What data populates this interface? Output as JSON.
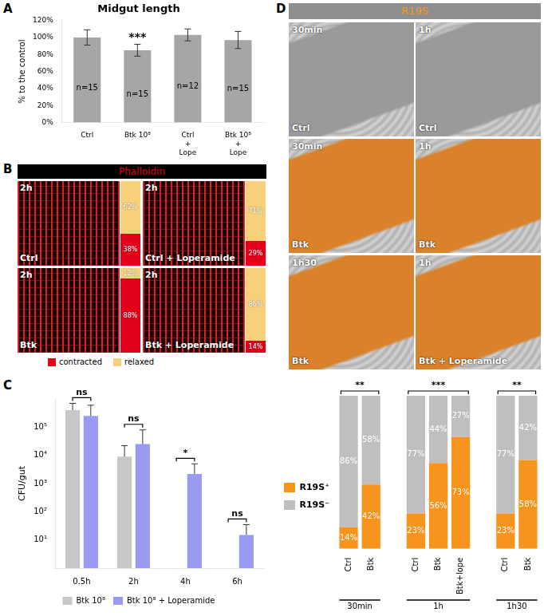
{
  "panel_labels": [
    "A",
    "B",
    "C",
    "D"
  ],
  "chart_data": [
    {
      "type": "bar",
      "title": "Midgut length",
      "y_label": "% to the control",
      "categories": [
        "Ctrl",
        "Btk 10⁸",
        "Ctrl\n+\nLope",
        "Btk 10⁸\n+\nLope"
      ],
      "values": [
        100,
        85,
        103,
        97
      ],
      "errors": [
        9,
        7,
        7,
        10
      ],
      "color": "#a6a6a6",
      "ylim": [
        0,
        120
      ],
      "yticks": [
        {
          "value": 0,
          "label": "0%"
        },
        {
          "value": 20,
          "label": "20%"
        },
        {
          "value": 40,
          "label": "40%"
        },
        {
          "value": 60,
          "label": "60%"
        },
        {
          "value": 80,
          "label": "80%"
        },
        {
          "value": 100,
          "label": "100%"
        },
        {
          "value": 120,
          "label": "120%"
        }
      ],
      "grid": false,
      "annotations": [
        {
          "text": "***",
          "category": "Btk 10⁸",
          "position": "above"
        },
        {
          "text": "n=15",
          "category": "Ctrl",
          "position": "inside"
        },
        {
          "text": "n=15",
          "category": "Btk 10⁸",
          "position": "inside"
        },
        {
          "text": "n=12",
          "category": "Ctrl\n+\nLope",
          "position": "inside"
        },
        {
          "text": "n=15",
          "category": "Btk 10⁸\n+\nLope",
          "position": "inside"
        }
      ]
    },
    {
      "type": "bar",
      "y_label": "CFU/gut",
      "categories": [
        "0.5h",
        "2h",
        "4h",
        "6h"
      ],
      "series": [
        {
          "name": "Btk 10⁸",
          "color": "#c8c8c8",
          "values": [
            400000,
            9000,
            null,
            null
          ],
          "errors": [
            300000,
            13000,
            null,
            null
          ]
        },
        {
          "name": "Btk 10⁸ + Loperamide",
          "color": "#9a9af0",
          "values": [
            250000,
            25000,
            2200,
            15
          ],
          "errors": [
            350000,
            55000,
            2800,
            20
          ]
        }
      ],
      "log": "y",
      "ylim": [
        1,
        1000000
      ],
      "yticks": [
        {
          "value": 10,
          "label": "10¹"
        },
        {
          "value": 100,
          "label": "10²"
        },
        {
          "value": 1000,
          "label": "10³"
        },
        {
          "value": 10000,
          "label": "10⁴"
        },
        {
          "value": 100000,
          "label": "10⁵"
        }
      ],
      "grid": false,
      "legend": "bottom",
      "annotations": [
        {
          "text": "ns",
          "category": "0.5h"
        },
        {
          "text": "ns",
          "category": "2h"
        },
        {
          "text": "*",
          "category": "4h"
        },
        {
          "text": "ns",
          "category": "6h"
        }
      ]
    },
    {
      "type": "bar",
      "stacked": true,
      "categories": [
        "Ctrl",
        "Btk",
        null,
        "Ctrl",
        "Btk",
        "Btk+lope",
        null,
        "Ctrl",
        "Btk"
      ],
      "x_groups": [
        "30min",
        "1h",
        "1h30"
      ],
      "series": [
        {
          "name": "R19S⁺",
          "color": "#f7941d",
          "values": [
            14,
            42,
            null,
            23,
            56,
            73,
            null,
            23,
            58
          ],
          "value_labels": [
            "14%",
            "42%",
            null,
            "23%",
            "56%",
            "73%",
            null,
            "23%",
            "58%"
          ]
        },
        {
          "name": "R19S⁻",
          "color": "#bfbfbf",
          "values": [
            86,
            58,
            null,
            77,
            44,
            27,
            null,
            77,
            42
          ],
          "value_labels": [
            "86%",
            "58%",
            null,
            "77%",
            "44%",
            "27%",
            null,
            "77%",
            "42%"
          ]
        }
      ],
      "ylim": [
        0,
        100
      ],
      "tick_labels": "x",
      "data_labels": true,
      "legend": "left",
      "grid": false,
      "annotations": [
        {
          "text": "**",
          "group": "30min"
        },
        {
          "text": "***",
          "group": "1h"
        },
        {
          "text": "**",
          "group": "1h30"
        }
      ]
    }
  ],
  "panel_B": {
    "header": "Phalloidin",
    "legend": [
      {
        "name": "contracted",
        "color": "#e2001a"
      },
      {
        "name": "relaxed",
        "color": "#f7d07a"
      }
    ],
    "images": [
      {
        "time": "2h",
        "label": "Ctrl",
        "color": "#d8202c",
        "bars": [
          {
            "name": "relaxed",
            "value": 62,
            "label": "62%"
          },
          {
            "name": "contracted",
            "value": 38,
            "label": "38%"
          }
        ]
      },
      {
        "time": "2h",
        "label": "Ctrl + Loperamide",
        "color": "#d8202c",
        "bars": [
          {
            "name": "relaxed",
            "value": 71,
            "label": "71%"
          },
          {
            "name": "contracted",
            "value": 29,
            "label": "29%"
          }
        ]
      },
      {
        "time": "2h",
        "label": "Btk",
        "color": "#d8202c",
        "bars": [
          {
            "name": "relaxed",
            "value": 12,
            "label": "12%"
          },
          {
            "name": "contracted",
            "value": 88,
            "label": "88%"
          }
        ]
      },
      {
        "time": "2h",
        "label": "Btk + Loperamide",
        "color": "#d8202c",
        "bars": [
          {
            "name": "relaxed",
            "value": 86,
            "label": "86%"
          },
          {
            "name": "contracted",
            "value": 14,
            "label": "14%"
          }
        ]
      }
    ]
  },
  "panel_D": {
    "header": "R19S",
    "images": [
      {
        "time": "30min",
        "label": "Ctrl",
        "color": "#9a9a9a"
      },
      {
        "time": "1h",
        "label": "Ctrl",
        "color": "#9a9a9a"
      },
      {
        "time": "30min",
        "label": "Btk",
        "color": "#d9822b"
      },
      {
        "time": "1h",
        "label": "Btk",
        "color": "#d9822b"
      },
      {
        "time": "1h30",
        "label": "Btk",
        "color": "#d9822b"
      },
      {
        "time": "1h",
        "label": "Btk + Loperamide",
        "color": "#d9822b"
      }
    ]
  }
}
